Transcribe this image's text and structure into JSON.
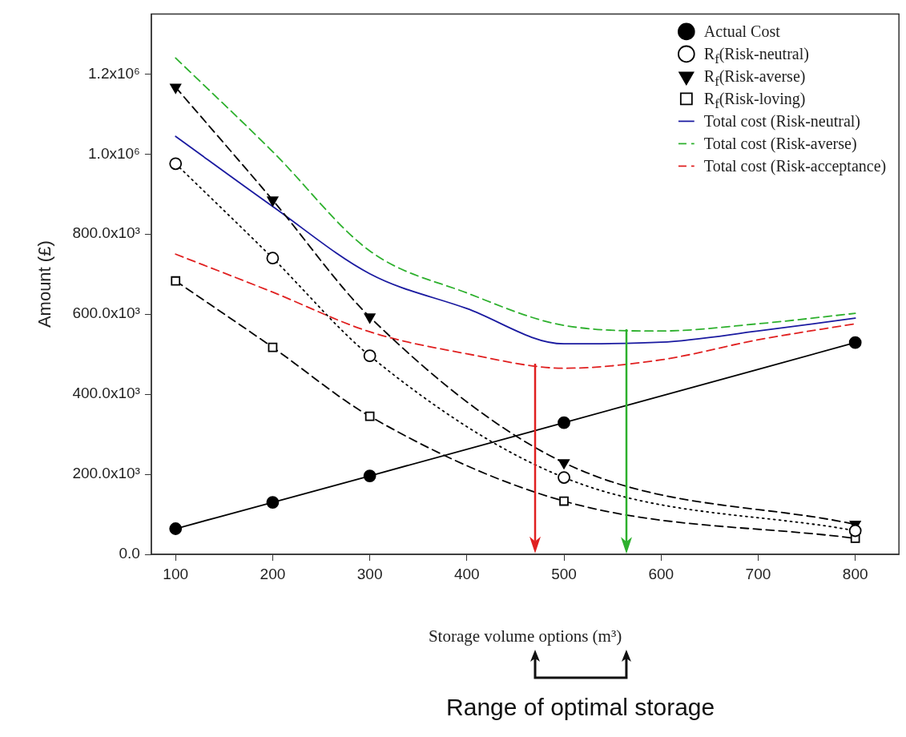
{
  "chart_data": {
    "type": "line",
    "xlabel": "Storage volume options (m³)",
    "ylabel": "Amount (£)",
    "x": [
      100,
      200,
      300,
      500,
      800
    ],
    "xlim": [
      75,
      845
    ],
    "xticks": [
      100,
      200,
      300,
      400,
      500,
      600,
      700,
      800
    ],
    "ylim": [
      0,
      1350000
    ],
    "yticks": [
      {
        "value": 0,
        "label": "0.0"
      },
      {
        "value": 200000,
        "label": "200.0x10³"
      },
      {
        "value": 400000,
        "label": "400.0x10³"
      },
      {
        "value": 600000,
        "label": "600.0x10³"
      },
      {
        "value": 800000,
        "label": "800.0x10³"
      },
      {
        "value": 1000000,
        "label": "1.0x10⁶"
      },
      {
        "value": 1200000,
        "label": "1.2x10⁶"
      }
    ],
    "legend": "top right",
    "grid": false,
    "series": [
      {
        "name": "Actual Cost",
        "color": "#000000",
        "marker": "circle",
        "line_style": "solid",
        "values": [
          64000,
          130000,
          196000,
          329000,
          529000
        ]
      },
      {
        "name": "R$_{f}$(Risk-neutral)",
        "color": "#000000",
        "marker": "circle",
        "line_style": "dotted",
        "values": [
          976000,
          740000,
          496000,
          192000,
          59000
        ]
      },
      {
        "name": "R$_{f}$(Risk-averse)",
        "color": "#000000",
        "marker": "triangle",
        "line_style": "dashed",
        "values": [
          1167000,
          885000,
          593000,
          229000,
          75000
        ]
      },
      {
        "name": "R$_{f}$(Risk-loving)",
        "color": "#000000",
        "marker": "square",
        "line_style": "dashed",
        "values": [
          683000,
          517000,
          345000,
          133000,
          40000
        ]
      },
      {
        "name": "Total cost (Risk-neutral)",
        "color": "#1a1aa0",
        "marker": "none",
        "line_style": "solid",
        "x": [
          100,
          200,
          300,
          400,
          500,
          600,
          700,
          800
        ],
        "values": [
          1044000,
          869000,
          701000,
          614000,
          526000,
          530000,
          558000,
          590000
        ]
      },
      {
        "name": "Total cost (Risk-averse)",
        "color": "#2db02d",
        "marker": "none",
        "line_style": "dashed",
        "x": [
          100,
          200,
          300,
          400,
          500,
          600,
          700,
          800
        ],
        "values": [
          1240000,
          1006000,
          758000,
          653000,
          572000,
          558000,
          576000,
          602000
        ]
      },
      {
        "name": "Total cost (Risk-acceptance)",
        "color": "#e02020",
        "marker": "none",
        "line_style": "dashed",
        "x": [
          100,
          200,
          300,
          400,
          500,
          600,
          700,
          800
        ],
        "values": [
          750000,
          655000,
          556000,
          501000,
          465000,
          486000,
          536000,
          576000
        ]
      }
    ],
    "ref_lines": [
      {
        "axis": "x",
        "value": 470,
        "color": "#e02020"
      },
      {
        "axis": "x",
        "value": 564,
        "color": "#2db02d"
      }
    ],
    "annotations": [
      "Range of optimal storage"
    ]
  }
}
